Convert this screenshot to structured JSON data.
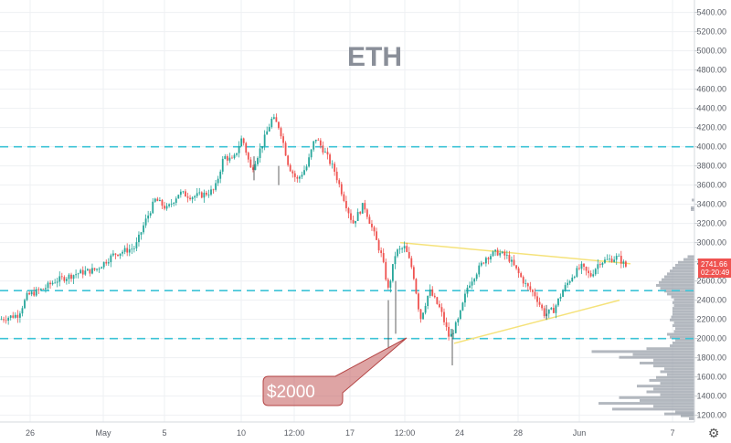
{
  "chart_data": {
    "type": "candlestick",
    "title": "ETH",
    "y_axis": {
      "side": "right",
      "ticks": [
        1200,
        1400,
        1600,
        1800,
        2000,
        2200,
        2400,
        2600,
        2800,
        3000,
        3200,
        3400,
        3600,
        3800,
        4000,
        4200,
        4400,
        4600,
        4800,
        5000,
        5200,
        5400
      ],
      "tick_labels": [
        "1200.00",
        "1400.00",
        "1600.00",
        "1800.00",
        "2000.00",
        "2200.00",
        "2400.00",
        "2600.00",
        "2800.00",
        "3000.00",
        "3200.00",
        "3400.00",
        "3600.00",
        "3800.00",
        "4000.00",
        "4200.00",
        "4400.00",
        "4600.00",
        "4800.00",
        "5000.00",
        "5200.00",
        "5400.00"
      ],
      "range": [
        1130,
        5530
      ]
    },
    "x_axis": {
      "tick_labels": [
        "26",
        "May",
        "5",
        "10",
        "12:00",
        "17",
        "12:00",
        "24",
        "28",
        "Jun",
        "7"
      ]
    },
    "grid": true,
    "current_price": "2741.66",
    "countdown": "02:20:49",
    "horizontal_levels": [
      4000,
      2500,
      2000
    ],
    "triangle": {
      "upper": [
        3000,
        2780
      ],
      "lower": [
        1950,
        2400
      ]
    },
    "annotation": {
      "label": "$2000",
      "points_to": 2000
    },
    "colors": {
      "up": "#26a69a",
      "down": "#ef5350",
      "badge": "#ef5350",
      "level_line": "#3cc3d6",
      "triangle": "#f5e27a",
      "callout": "#c25a5a",
      "volume_profile": "#9aa0aa"
    },
    "path": [
      [
        0,
        2200
      ],
      [
        20,
        2250
      ],
      [
        30,
        2450
      ],
      [
        48,
        2520
      ],
      [
        60,
        2600
      ],
      [
        85,
        2680
      ],
      [
        105,
        2720
      ],
      [
        125,
        2880
      ],
      [
        148,
        2950
      ],
      [
        158,
        3200
      ],
      [
        170,
        3450
      ],
      [
        183,
        3350
      ],
      [
        196,
        3520
      ],
      [
        210,
        3480
      ],
      [
        222,
        3500
      ],
      [
        235,
        3550
      ],
      [
        245,
        3900
      ],
      [
        255,
        3850
      ],
      [
        265,
        4100
      ],
      [
        275,
        3750
      ],
      [
        288,
        4050
      ],
      [
        298,
        4300
      ],
      [
        306,
        4200
      ],
      [
        316,
        3800
      ],
      [
        325,
        3650
      ],
      [
        336,
        3800
      ],
      [
        345,
        4100
      ],
      [
        355,
        3950
      ],
      [
        366,
        3750
      ],
      [
        375,
        3500
      ],
      [
        386,
        3200
      ],
      [
        398,
        3400
      ],
      [
        409,
        3100
      ],
      [
        418,
        2850
      ],
      [
        425,
        2500
      ],
      [
        433,
        2900
      ],
      [
        443,
        2950
      ],
      [
        452,
        2700
      ],
      [
        460,
        2200
      ],
      [
        470,
        2500
      ],
      [
        482,
        2300
      ],
      [
        492,
        2000
      ],
      [
        502,
        2200
      ],
      [
        512,
        2550
      ],
      [
        522,
        2700
      ],
      [
        532,
        2850
      ],
      [
        544,
        2900
      ],
      [
        556,
        2850
      ],
      [
        566,
        2700
      ],
      [
        576,
        2550
      ],
      [
        586,
        2450
      ],
      [
        596,
        2250
      ],
      [
        606,
        2300
      ],
      [
        616,
        2500
      ],
      [
        626,
        2650
      ],
      [
        636,
        2750
      ],
      [
        646,
        2650
      ],
      [
        656,
        2800
      ],
      [
        666,
        2820
      ],
      [
        676,
        2850
      ],
      [
        686,
        2741
      ]
    ]
  }
}
